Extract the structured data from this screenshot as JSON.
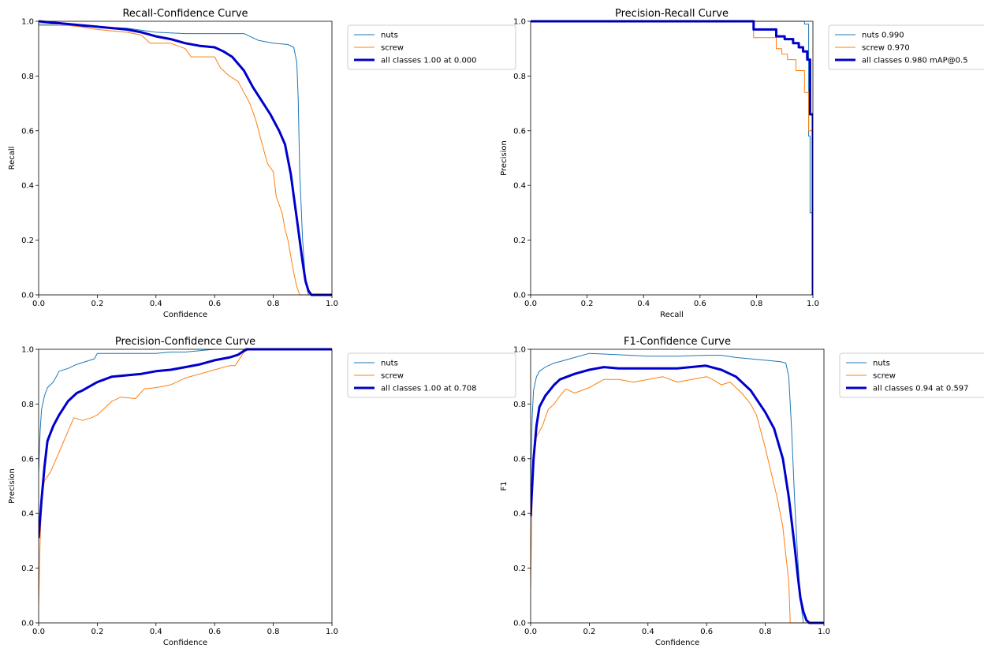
{
  "colors": {
    "nuts": "#1f77b4",
    "screw": "#ff7f0e",
    "all": "#0000cc"
  },
  "chart_data": [
    {
      "type": "line",
      "title": "Recall-Confidence Curve",
      "xlabel": "Confidence",
      "ylabel": "Recall",
      "xlim": [
        0,
        1
      ],
      "ylim": [
        0,
        1
      ],
      "xticks": [
        "0.0",
        "0.2",
        "0.4",
        "0.6",
        "0.8",
        "1.0"
      ],
      "yticks": [
        "0.0",
        "0.2",
        "0.4",
        "0.6",
        "0.8",
        "1.0"
      ],
      "legend": "top-right-outside",
      "series": [
        {
          "name": "nuts",
          "key": "nuts",
          "x": [
            0,
            0.05,
            0.1,
            0.15,
            0.2,
            0.3,
            0.4,
            0.5,
            0.6,
            0.7,
            0.75,
            0.8,
            0.85,
            0.87,
            0.88,
            0.885,
            0.89,
            0.9,
            0.91,
            0.92,
            1.0
          ],
          "y": [
            0.99,
            0.99,
            0.99,
            0.98,
            0.98,
            0.975,
            0.96,
            0.955,
            0.955,
            0.955,
            0.93,
            0.92,
            0.915,
            0.905,
            0.85,
            0.72,
            0.45,
            0.2,
            0.05,
            0,
            0
          ]
        },
        {
          "name": "screw",
          "key": "screw",
          "x": [
            0,
            0.1,
            0.14,
            0.2,
            0.3,
            0.35,
            0.38,
            0.4,
            0.45,
            0.5,
            0.52,
            0.55,
            0.58,
            0.6,
            0.62,
            0.65,
            0.68,
            0.7,
            0.72,
            0.74,
            0.75,
            0.77,
            0.78,
            0.8,
            0.81,
            0.82,
            0.83,
            0.84,
            0.85,
            0.86,
            0.87,
            0.88,
            0.89,
            1.0
          ],
          "y": [
            0.985,
            0.985,
            0.98,
            0.97,
            0.96,
            0.95,
            0.92,
            0.92,
            0.92,
            0.9,
            0.87,
            0.87,
            0.87,
            0.87,
            0.83,
            0.8,
            0.78,
            0.74,
            0.7,
            0.64,
            0.6,
            0.52,
            0.48,
            0.45,
            0.36,
            0.33,
            0.3,
            0.24,
            0.2,
            0.14,
            0.08,
            0.03,
            0,
            0
          ]
        },
        {
          "name": "all classes 1.00 at 0.000",
          "key": "all",
          "thick": true,
          "x": [
            0,
            0.1,
            0.2,
            0.3,
            0.35,
            0.4,
            0.45,
            0.5,
            0.55,
            0.6,
            0.63,
            0.66,
            0.7,
            0.73,
            0.76,
            0.79,
            0.82,
            0.84,
            0.86,
            0.87,
            0.88,
            0.89,
            0.9,
            0.91,
            0.92,
            0.93,
            0.94,
            1.0
          ],
          "y": [
            1.0,
            0.99,
            0.98,
            0.97,
            0.96,
            0.945,
            0.935,
            0.92,
            0.91,
            0.905,
            0.89,
            0.87,
            0.82,
            0.76,
            0.71,
            0.66,
            0.6,
            0.55,
            0.44,
            0.36,
            0.28,
            0.2,
            0.12,
            0.05,
            0.015,
            0,
            0,
            0
          ]
        }
      ]
    },
    {
      "type": "line",
      "title": "Precision-Recall Curve",
      "xlabel": "Recall",
      "ylabel": "Precision",
      "xlim": [
        0,
        1
      ],
      "ylim": [
        0,
        1
      ],
      "xticks": [
        "0.0",
        "0.2",
        "0.4",
        "0.6",
        "0.8",
        "1.0"
      ],
      "yticks": [
        "0.0",
        "0.2",
        "0.4",
        "0.6",
        "0.8",
        "1.0"
      ],
      "legend": "top-right-outside",
      "series": [
        {
          "name": "nuts 0.990",
          "key": "nuts",
          "x": [
            0,
            0.96,
            0.97,
            0.97,
            0.985,
            0.985,
            0.99,
            0.99,
            1.0,
            1.0
          ],
          "y": [
            1,
            1,
            1,
            0.99,
            0.99,
            0.58,
            0.58,
            0.3,
            0.3,
            0
          ],
          "step": true
        },
        {
          "name": "screw 0.970",
          "key": "screw",
          "x": [
            0,
            0.79,
            0.79,
            0.87,
            0.87,
            0.89,
            0.89,
            0.91,
            0.91,
            0.94,
            0.94,
            0.97,
            0.97,
            0.985,
            0.985,
            1.0,
            1.0
          ],
          "y": [
            1,
            1,
            0.94,
            0.94,
            0.9,
            0.9,
            0.88,
            0.88,
            0.86,
            0.86,
            0.82,
            0.82,
            0.74,
            0.74,
            0.6,
            0.6,
            0
          ],
          "step": true
        },
        {
          "name": "all classes 0.980 mAP@0.5",
          "key": "all",
          "thick": true,
          "x": [
            0,
            0.79,
            0.79,
            0.87,
            0.87,
            0.9,
            0.9,
            0.93,
            0.93,
            0.95,
            0.95,
            0.965,
            0.965,
            0.98,
            0.98,
            0.99,
            0.99,
            1.0,
            1.0
          ],
          "y": [
            1,
            1,
            0.97,
            0.97,
            0.945,
            0.945,
            0.935,
            0.935,
            0.92,
            0.92,
            0.905,
            0.905,
            0.89,
            0.89,
            0.86,
            0.86,
            0.66,
            0.66,
            0
          ],
          "step": true
        }
      ]
    },
    {
      "type": "line",
      "title": "Precision-Confidence Curve",
      "xlabel": "Confidence",
      "ylabel": "Precision",
      "xlim": [
        0,
        1
      ],
      "ylim": [
        0,
        1
      ],
      "xticks": [
        "0.0",
        "0.2",
        "0.4",
        "0.6",
        "0.8",
        "1.0"
      ],
      "yticks": [
        "0.0",
        "0.2",
        "0.4",
        "0.6",
        "0.8",
        "1.0"
      ],
      "legend": "top-right-outside",
      "series": [
        {
          "name": "nuts",
          "key": "nuts",
          "x": [
            0,
            0.005,
            0.01,
            0.02,
            0.03,
            0.04,
            0.05,
            0.07,
            0.1,
            0.13,
            0.16,
            0.19,
            0.2,
            0.25,
            0.3,
            0.35,
            0.4,
            0.45,
            0.5,
            0.55,
            0.6,
            0.65,
            0.7,
            1.0
          ],
          "y": [
            0.55,
            0.7,
            0.78,
            0.83,
            0.86,
            0.87,
            0.88,
            0.92,
            0.93,
            0.945,
            0.955,
            0.965,
            0.985,
            0.985,
            0.985,
            0.985,
            0.985,
            0.99,
            0.99,
            0.995,
            1.0,
            1.0,
            1.0,
            1.0
          ]
        },
        {
          "name": "screw",
          "key": "screw",
          "x": [
            0,
            0.005,
            0.01,
            0.02,
            0.04,
            0.06,
            0.08,
            0.1,
            0.12,
            0.15,
            0.18,
            0.2,
            0.25,
            0.28,
            0.33,
            0.36,
            0.4,
            0.45,
            0.5,
            0.55,
            0.6,
            0.65,
            0.67,
            0.7,
            0.72,
            1.0
          ],
          "y": [
            0.07,
            0.3,
            0.45,
            0.52,
            0.55,
            0.6,
            0.65,
            0.7,
            0.75,
            0.74,
            0.75,
            0.76,
            0.81,
            0.825,
            0.82,
            0.855,
            0.86,
            0.87,
            0.895,
            0.91,
            0.925,
            0.94,
            0.94,
            0.99,
            1.0,
            1.0
          ]
        },
        {
          "name": "all classes 1.00 at 0.708",
          "key": "all",
          "thick": true,
          "x": [
            0,
            0.01,
            0.02,
            0.03,
            0.05,
            0.07,
            0.1,
            0.13,
            0.15,
            0.2,
            0.25,
            0.3,
            0.35,
            0.4,
            0.45,
            0.5,
            0.55,
            0.6,
            0.65,
            0.68,
            0.708,
            1.0
          ],
          "y": [
            0.31,
            0.45,
            0.57,
            0.665,
            0.72,
            0.76,
            0.81,
            0.84,
            0.85,
            0.88,
            0.9,
            0.905,
            0.91,
            0.92,
            0.925,
            0.935,
            0.945,
            0.96,
            0.97,
            0.98,
            1.0,
            1.0
          ]
        }
      ]
    },
    {
      "type": "line",
      "title": "F1-Confidence Curve",
      "xlabel": "Confidence",
      "ylabel": "F1",
      "xlim": [
        0,
        1
      ],
      "ylim": [
        0,
        1
      ],
      "xticks": [
        "0.0",
        "0.2",
        "0.4",
        "0.6",
        "0.8",
        "1.0"
      ],
      "yticks": [
        "0.0",
        "0.2",
        "0.4",
        "0.6",
        "0.8",
        "1.0"
      ],
      "legend": "top-right-outside",
      "series": [
        {
          "name": "nuts",
          "key": "nuts",
          "x": [
            0,
            0.005,
            0.01,
            0.02,
            0.03,
            0.05,
            0.08,
            0.1,
            0.15,
            0.2,
            0.3,
            0.4,
            0.5,
            0.6,
            0.65,
            0.7,
            0.75,
            0.8,
            0.85,
            0.87,
            0.88,
            0.89,
            0.9,
            0.91,
            0.92,
            0.93,
            1.0
          ],
          "y": [
            0.5,
            0.75,
            0.85,
            0.9,
            0.92,
            0.935,
            0.95,
            0.955,
            0.97,
            0.985,
            0.98,
            0.975,
            0.975,
            0.978,
            0.978,
            0.97,
            0.965,
            0.96,
            0.955,
            0.95,
            0.9,
            0.7,
            0.45,
            0.25,
            0.08,
            0,
            0
          ]
        },
        {
          "name": "screw",
          "key": "screw",
          "x": [
            0,
            0.005,
            0.01,
            0.02,
            0.04,
            0.06,
            0.08,
            0.1,
            0.12,
            0.15,
            0.2,
            0.25,
            0.3,
            0.35,
            0.4,
            0.45,
            0.5,
            0.55,
            0.6,
            0.62,
            0.65,
            0.68,
            0.7,
            0.72,
            0.75,
            0.77,
            0.8,
            0.82,
            0.84,
            0.86,
            0.87,
            0.88,
            0.885,
            1.0
          ],
          "y": [
            0.13,
            0.45,
            0.58,
            0.68,
            0.72,
            0.78,
            0.8,
            0.83,
            0.855,
            0.84,
            0.86,
            0.89,
            0.89,
            0.88,
            0.89,
            0.9,
            0.88,
            0.89,
            0.9,
            0.89,
            0.87,
            0.88,
            0.86,
            0.84,
            0.8,
            0.76,
            0.64,
            0.55,
            0.46,
            0.35,
            0.25,
            0.15,
            0,
            0
          ]
        },
        {
          "name": "all classes 0.94 at 0.597",
          "key": "all",
          "thick": true,
          "x": [
            0,
            0.01,
            0.02,
            0.03,
            0.05,
            0.08,
            0.1,
            0.15,
            0.2,
            0.25,
            0.3,
            0.4,
            0.5,
            0.597,
            0.65,
            0.7,
            0.75,
            0.8,
            0.83,
            0.86,
            0.88,
            0.9,
            0.91,
            0.92,
            0.93,
            0.94,
            0.95,
            1.0
          ],
          "y": [
            0.39,
            0.6,
            0.72,
            0.79,
            0.83,
            0.87,
            0.89,
            0.91,
            0.925,
            0.935,
            0.93,
            0.93,
            0.93,
            0.94,
            0.925,
            0.9,
            0.85,
            0.77,
            0.71,
            0.6,
            0.46,
            0.28,
            0.18,
            0.09,
            0.04,
            0.01,
            0,
            0
          ]
        }
      ]
    }
  ]
}
